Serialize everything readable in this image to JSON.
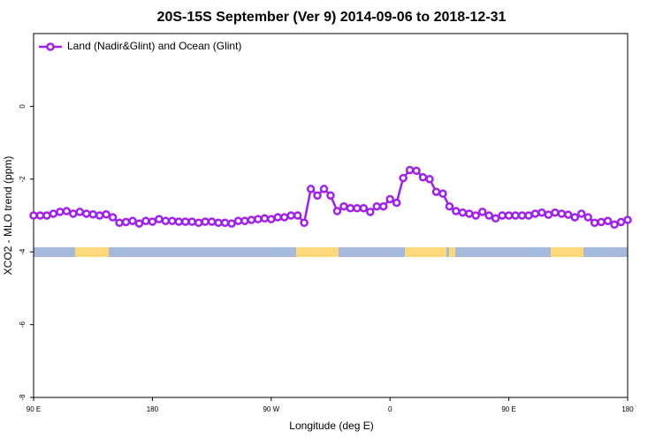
{
  "chart_data": {
    "type": "line",
    "title": "20S-15S September (Ver 9)   2014-09-06 to 2018-12-31",
    "x_label": "Longitude (deg E)",
    "y_label": "XCO2 - MLO trend (ppm)",
    "xlim": [
      90,
      540
    ],
    "xticks": [
      {
        "value": 90,
        "label": "90 E"
      },
      {
        "value": 180,
        "label": "180"
      },
      {
        "value": 270,
        "label": "90 W"
      },
      {
        "value": 360,
        "label": "0"
      },
      {
        "value": 450,
        "label": "90 E"
      },
      {
        "value": 540,
        "label": "180"
      }
    ],
    "ylim": [
      -8,
      2
    ],
    "yticks": [
      -8,
      -6,
      -4,
      -2,
      0
    ],
    "legend": "top-left",
    "x": [
      90,
      95,
      100,
      105,
      110,
      115,
      120,
      125,
      130,
      135,
      140,
      145,
      150,
      155,
      160,
      165,
      170,
      175,
      180,
      185,
      190,
      195,
      200,
      205,
      210,
      215,
      220,
      225,
      230,
      235,
      240,
      245,
      250,
      255,
      260,
      265,
      270,
      275,
      280,
      285,
      290,
      295,
      300,
      305,
      310,
      315,
      320,
      325,
      330,
      335,
      340,
      345,
      350,
      355,
      360,
      365,
      370,
      375,
      380,
      385,
      390,
      395,
      400,
      405,
      410,
      415,
      420,
      425,
      430,
      435,
      440,
      445,
      450,
      455,
      460,
      465,
      470,
      475,
      480,
      485,
      490,
      495,
      500,
      505,
      510,
      515,
      520,
      525,
      530,
      535,
      540
    ],
    "series": [
      {
        "name": "Land (Nadir&Glint) and Ocean (Glint)",
        "color": "#a020f0",
        "values": [
          -3.0,
          -3.0,
          -3.0,
          -2.95,
          -2.9,
          -2.88,
          -2.95,
          -2.9,
          -2.95,
          -2.97,
          -3.0,
          -2.97,
          -3.05,
          -3.2,
          -3.18,
          -3.15,
          -3.22,
          -3.15,
          -3.17,
          -3.1,
          -3.15,
          -3.15,
          -3.17,
          -3.17,
          -3.17,
          -3.2,
          -3.17,
          -3.17,
          -3.2,
          -3.2,
          -3.22,
          -3.15,
          -3.15,
          -3.12,
          -3.1,
          -3.08,
          -3.1,
          -3.05,
          -3.05,
          -3.0,
          -3.0,
          -3.2,
          -2.27,
          -2.45,
          -2.27,
          -2.45,
          -2.88,
          -2.75,
          -2.8,
          -2.8,
          -2.8,
          -2.9,
          -2.75,
          -2.75,
          -2.55,
          -2.65,
          -1.97,
          -1.75,
          -1.77,
          -1.95,
          -2.0,
          -2.35,
          -2.4,
          -2.75,
          -2.88,
          -2.92,
          -2.95,
          -3.0,
          -2.9,
          -3.0,
          -3.08,
          -3.0,
          -3.0,
          -3.0,
          -3.0,
          -3.0,
          -2.95,
          -2.92,
          -2.98,
          -2.92,
          -2.95,
          -2.98,
          -3.05,
          -2.95,
          -3.05,
          -3.2,
          -3.18,
          -3.15,
          -3.25,
          -3.18,
          -3.12
        ]
      }
    ]
  }
}
